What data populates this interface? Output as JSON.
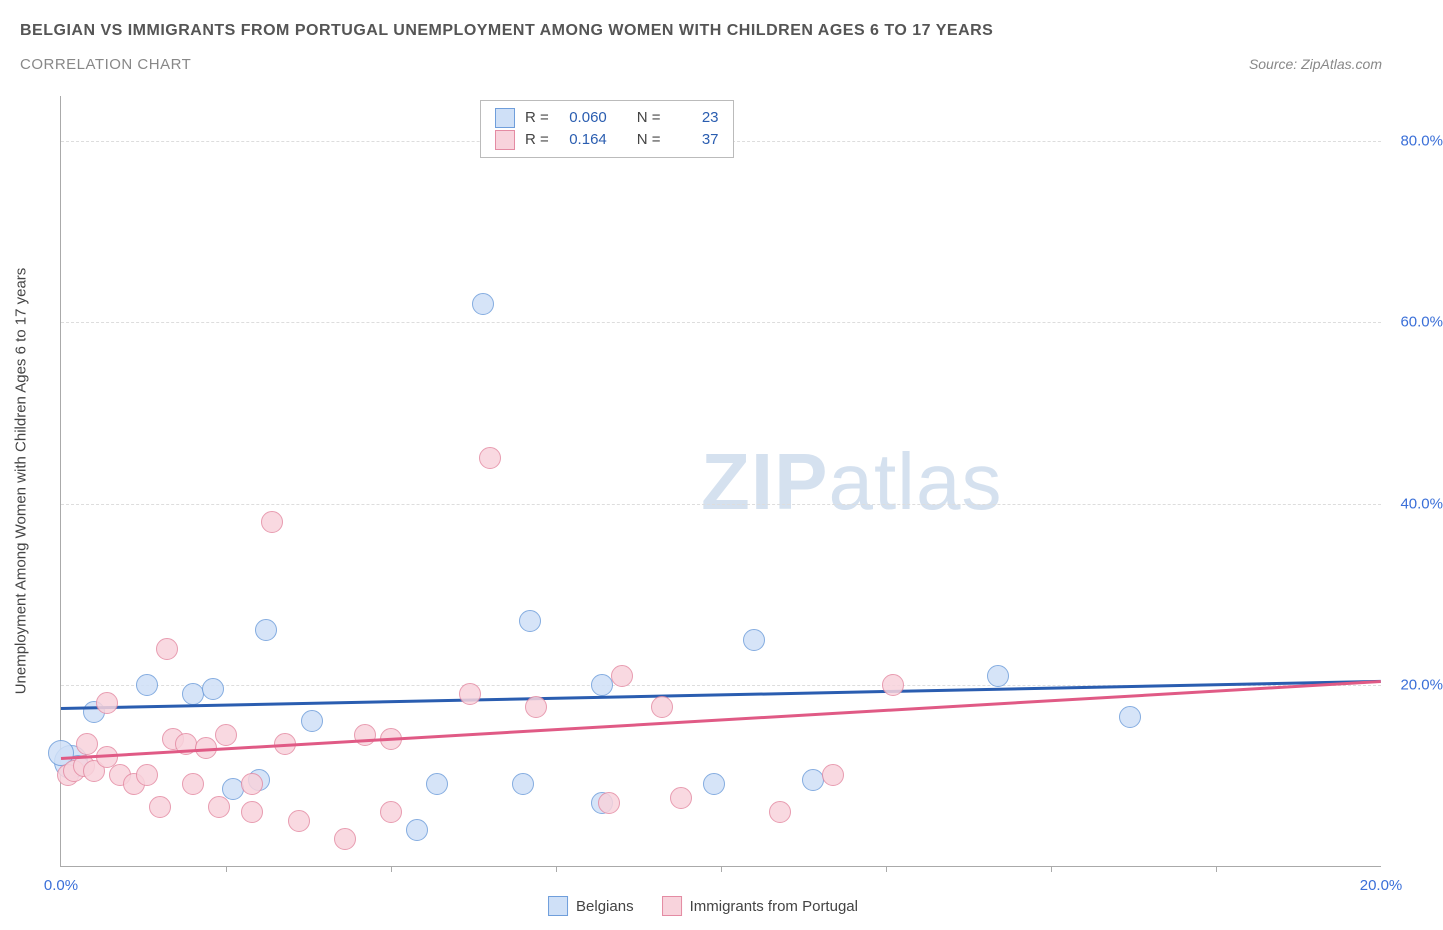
{
  "title_main": "BELGIAN VS IMMIGRANTS FROM PORTUGAL UNEMPLOYMENT AMONG WOMEN WITH CHILDREN AGES 6 TO 17 YEARS",
  "title_sub": "CORRELATION CHART",
  "source_label": "Source: ZipAtlas.com",
  "y_axis_label": "Unemployment Among Women with Children Ages 6 to 17 years",
  "watermark_bold": "ZIP",
  "watermark_light": "atlas",
  "chart": {
    "type": "scatter",
    "background_color": "#ffffff",
    "grid_color": "#dddddd",
    "axis_color": "#aaaaaa",
    "tick_label_color": "#3a6fd8",
    "xlim": [
      0,
      20
    ],
    "ylim": [
      0,
      85
    ],
    "y_ticks": [
      {
        "v": 20,
        "label": "20.0%"
      },
      {
        "v": 40,
        "label": "40.0%"
      },
      {
        "v": 60,
        "label": "60.0%"
      },
      {
        "v": 80,
        "label": "80.0%"
      }
    ],
    "x_ticks_minor": [
      2.5,
      5.0,
      7.5,
      10.0,
      12.5,
      15.0,
      17.5
    ],
    "x_tick_labels": [
      {
        "v": 0,
        "label": "0.0%"
      },
      {
        "v": 20,
        "label": "20.0%"
      }
    ],
    "series": [
      {
        "id": "belgian",
        "label": "Belgians",
        "fill": "#cfe0f7",
        "stroke": "#6f9edb",
        "marker_radius": 10,
        "trend": {
          "y_at_x0": 17.5,
          "y_at_xmax": 20.5,
          "color": "#2a5db0"
        },
        "R": "0.060",
        "N": "23",
        "points": [
          {
            "x": 0.15,
            "y": 11.5,
            "r": 16
          },
          {
            "x": 0.25,
            "y": 11.0,
            "r": 10
          },
          {
            "x": 0.0,
            "y": 12.5,
            "r": 12
          },
          {
            "x": 0.5,
            "y": 17.0,
            "r": 10
          },
          {
            "x": 1.3,
            "y": 20.0,
            "r": 10
          },
          {
            "x": 2.0,
            "y": 19.0,
            "r": 10
          },
          {
            "x": 2.3,
            "y": 19.5,
            "r": 10
          },
          {
            "x": 2.6,
            "y": 8.5,
            "r": 10
          },
          {
            "x": 3.0,
            "y": 9.5,
            "r": 10
          },
          {
            "x": 3.1,
            "y": 26.0,
            "r": 10
          },
          {
            "x": 3.8,
            "y": 16.0,
            "r": 10
          },
          {
            "x": 5.4,
            "y": 4.0,
            "r": 10
          },
          {
            "x": 5.7,
            "y": 9.0,
            "r": 10
          },
          {
            "x": 6.4,
            "y": 62.0,
            "r": 10
          },
          {
            "x": 7.0,
            "y": 9.0,
            "r": 10
          },
          {
            "x": 7.1,
            "y": 27.0,
            "r": 10
          },
          {
            "x": 8.2,
            "y": 7.0,
            "r": 10
          },
          {
            "x": 8.2,
            "y": 20.0,
            "r": 10
          },
          {
            "x": 9.9,
            "y": 9.0,
            "r": 10
          },
          {
            "x": 10.5,
            "y": 25.0,
            "r": 10
          },
          {
            "x": 11.4,
            "y": 9.5,
            "r": 10
          },
          {
            "x": 14.2,
            "y": 21.0,
            "r": 10
          },
          {
            "x": 16.2,
            "y": 16.5,
            "r": 10
          }
        ]
      },
      {
        "id": "portugal",
        "label": "Immigrants from Portugal",
        "fill": "#f8d3dc",
        "stroke": "#e48ba3",
        "marker_radius": 10,
        "trend": {
          "y_at_x0": 12.0,
          "y_at_xmax": 20.5,
          "color": "#e05a85"
        },
        "R": "0.164",
        "N": "37",
        "points": [
          {
            "x": 0.1,
            "y": 10.0,
            "r": 10
          },
          {
            "x": 0.2,
            "y": 10.5,
            "r": 10
          },
          {
            "x": 0.35,
            "y": 11.0,
            "r": 10
          },
          {
            "x": 0.5,
            "y": 10.5,
            "r": 10
          },
          {
            "x": 0.4,
            "y": 13.5,
            "r": 10
          },
          {
            "x": 0.7,
            "y": 12.0,
            "r": 10
          },
          {
            "x": 0.7,
            "y": 18.0,
            "r": 10
          },
          {
            "x": 0.9,
            "y": 10.0,
            "r": 10
          },
          {
            "x": 1.1,
            "y": 9.0,
            "r": 10
          },
          {
            "x": 1.3,
            "y": 10.0,
            "r": 10
          },
          {
            "x": 1.5,
            "y": 6.5,
            "r": 10
          },
          {
            "x": 1.6,
            "y": 24.0,
            "r": 10
          },
          {
            "x": 1.7,
            "y": 14.0,
            "r": 10
          },
          {
            "x": 1.9,
            "y": 13.5,
            "r": 10
          },
          {
            "x": 2.0,
            "y": 9.0,
            "r": 10
          },
          {
            "x": 2.2,
            "y": 13.0,
            "r": 10
          },
          {
            "x": 2.4,
            "y": 6.5,
            "r": 10
          },
          {
            "x": 2.5,
            "y": 14.5,
            "r": 10
          },
          {
            "x": 2.9,
            "y": 9.0,
            "r": 10
          },
          {
            "x": 2.9,
            "y": 6.0,
            "r": 10
          },
          {
            "x": 3.2,
            "y": 38.0,
            "r": 10
          },
          {
            "x": 3.4,
            "y": 13.5,
            "r": 10
          },
          {
            "x": 3.6,
            "y": 5.0,
            "r": 10
          },
          {
            "x": 4.3,
            "y": 3.0,
            "r": 10
          },
          {
            "x": 4.6,
            "y": 14.5,
            "r": 10
          },
          {
            "x": 5.0,
            "y": 6.0,
            "r": 10
          },
          {
            "x": 5.0,
            "y": 14.0,
            "r": 10
          },
          {
            "x": 6.2,
            "y": 19.0,
            "r": 10
          },
          {
            "x": 6.5,
            "y": 45.0,
            "r": 10
          },
          {
            "x": 7.2,
            "y": 17.5,
            "r": 10
          },
          {
            "x": 8.3,
            "y": 7.0,
            "r": 10
          },
          {
            "x": 8.5,
            "y": 21.0,
            "r": 10
          },
          {
            "x": 9.1,
            "y": 17.5,
            "r": 10
          },
          {
            "x": 9.4,
            "y": 7.5,
            "r": 10
          },
          {
            "x": 10.9,
            "y": 6.0,
            "r": 10
          },
          {
            "x": 11.7,
            "y": 10.0,
            "r": 10
          },
          {
            "x": 12.6,
            "y": 20.0,
            "r": 10
          }
        ]
      }
    ],
    "legend_top": {
      "R_label": "R =",
      "N_label": "N ="
    },
    "legend_bottom_labels": {
      "belgian": "Belgians",
      "portugal": "Immigrants from Portugal"
    }
  }
}
